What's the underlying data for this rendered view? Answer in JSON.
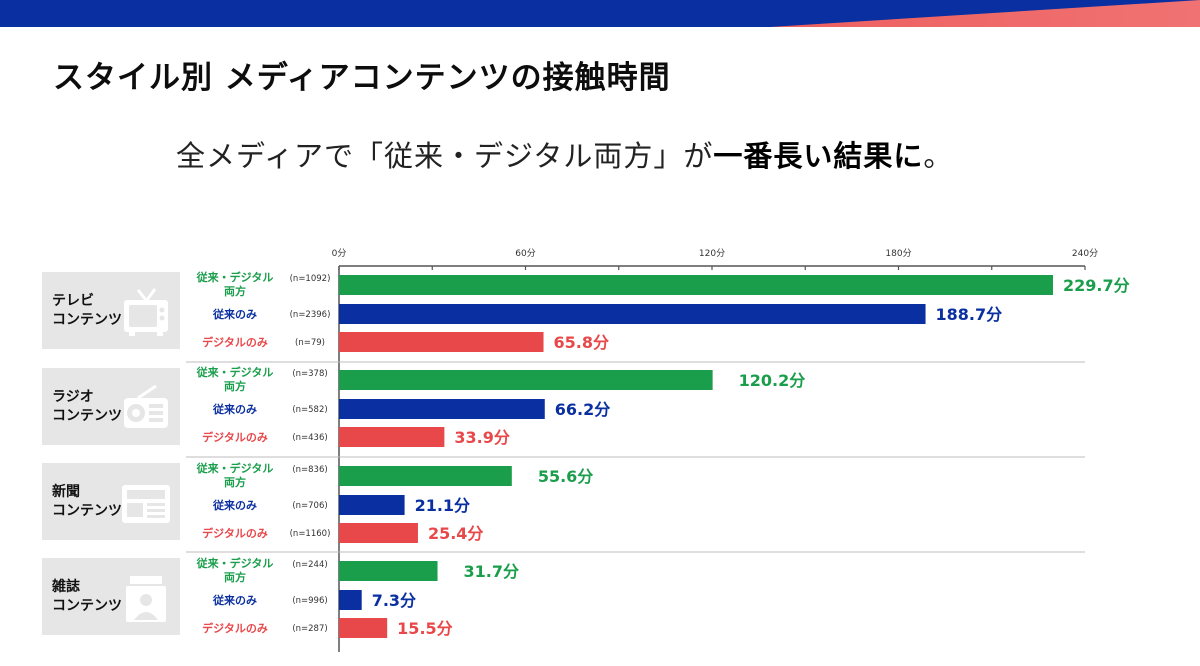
{
  "title": "スタイル別 メディアコンテンツの接触時間",
  "subtitle": {
    "part1": "全メディアで「従来・デジタル両方」が",
    "part2": "一番長い結果に",
    "part3": "。"
  },
  "colors": {
    "both": "#1a9e4b",
    "traditional": "#0a2fa0",
    "digital": "#e8484a",
    "banner_blue": "#0a2fa0",
    "banner_red": "#ee5f5f"
  },
  "groups": [
    {
      "name": "テレビ\nコンテンツ",
      "icon": "tv-icon"
    },
    {
      "name": "ラジオ\nコンテンツ",
      "icon": "radio-icon"
    },
    {
      "name": "新聞\nコンテンツ",
      "icon": "newspaper-icon"
    },
    {
      "name": "雑誌\nコンテンツ",
      "icon": "magazine-icon"
    }
  ],
  "chart_data": {
    "type": "bar",
    "orientation": "horizontal",
    "x_ticks": [
      "0分",
      "60分",
      "120分",
      "180分",
      "240分"
    ],
    "xlim": [
      0,
      240
    ],
    "unit": "分",
    "groups": [
      "テレビコンテンツ",
      "ラジオコンテンツ",
      "新聞コンテンツ",
      "雑誌コンテンツ"
    ],
    "series": [
      {
        "name": "従来・デジタル両方",
        "label_lines": [
          "従来・デジタル",
          "両方"
        ],
        "key": "both",
        "values": [
          229.7,
          120.2,
          55.6,
          31.7
        ],
        "value_labels": [
          "229.7分",
          "120.2分",
          "55.6分",
          "31.7分"
        ],
        "n_labels": [
          "(n=1092)",
          "(n=378)",
          "(n=836)",
          "(n=244)"
        ]
      },
      {
        "name": "従来のみ",
        "label_lines": [
          "従来のみ"
        ],
        "key": "traditional",
        "values": [
          188.7,
          66.2,
          21.1,
          7.3
        ],
        "value_labels": [
          "188.7分",
          "66.2分",
          "21.1分",
          "7.3分"
        ],
        "n_labels": [
          "(n=2396)",
          "(n=582)",
          "(n=706)",
          "(n=996)"
        ]
      },
      {
        "name": "デジタルのみ",
        "label_lines": [
          "デジタルのみ"
        ],
        "key": "digital",
        "values": [
          65.8,
          33.9,
          25.4,
          15.5
        ],
        "value_labels": [
          "65.8分",
          "33.9分",
          "25.4分",
          "15.5分"
        ],
        "n_labels": [
          "(n=79)",
          "(n=436)",
          "(n=1160)",
          "(n=287)"
        ]
      }
    ]
  }
}
